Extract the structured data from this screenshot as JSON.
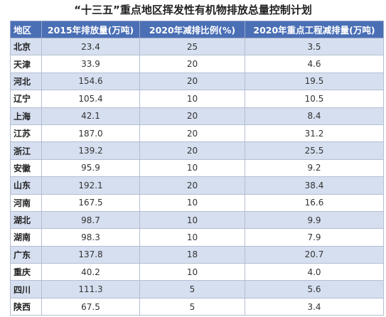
{
  "title": "“十三五”重点地区挥发性有机物排放总量控制计划",
  "table": {
    "headers": [
      "地区",
      "2015年排放量(万吨)",
      "2020年减排比例(%)",
      "2020年重点工程减排量(万吨)"
    ],
    "rows": [
      [
        "北京",
        "23.4",
        "25",
        "3.5"
      ],
      [
        "天津",
        "33.9",
        "20",
        "4.6"
      ],
      [
        "河北",
        "154.6",
        "20",
        "19.5"
      ],
      [
        "辽宁",
        "105.4",
        "10",
        "10.5"
      ],
      [
        "上海",
        "42.1",
        "20",
        "8.4"
      ],
      [
        "江苏",
        "187.0",
        "20",
        "31.2"
      ],
      [
        "浙江",
        "139.2",
        "20",
        "25.5"
      ],
      [
        "安徽",
        "95.9",
        "10",
        "9.2"
      ],
      [
        "山东",
        "192.1",
        "20",
        "38.4"
      ],
      [
        "河南",
        "167.5",
        "10",
        "16.6"
      ],
      [
        "湖北",
        "98.7",
        "10",
        "9.9"
      ],
      [
        "湖南",
        "98.3",
        "10",
        "7.9"
      ],
      [
        "广东",
        "137.8",
        "18",
        "20.7"
      ],
      [
        "重庆",
        "40.2",
        "10",
        "4.0"
      ],
      [
        "四川",
        "111.3",
        "5",
        "5.6"
      ],
      [
        "陕西",
        "67.5",
        "5",
        "3.4"
      ]
    ]
  },
  "colors": {
    "header_bg": "#4a6fb5",
    "header_text": "#ffffff",
    "odd_row_bg": "#d6dff0",
    "even_row_bg": "#ffffff"
  }
}
